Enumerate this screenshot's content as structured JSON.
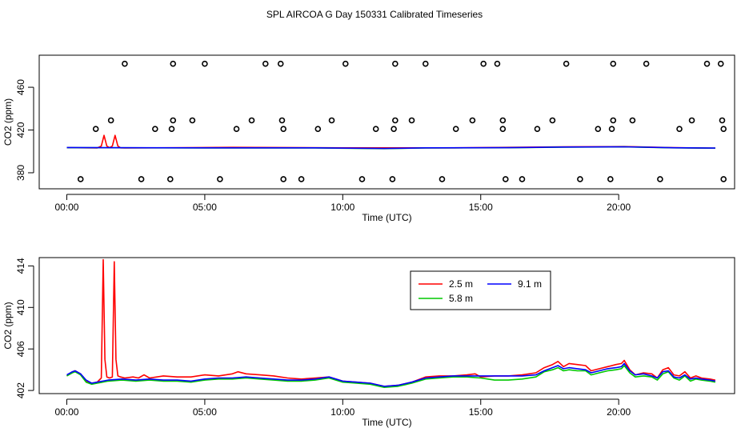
{
  "title": "SPL AIRCOA G  Day 150331  Calibrated Timeseries",
  "colors": {
    "red": "#ff0000",
    "green": "#00c800",
    "blue": "#0000ff",
    "black": "#000000"
  },
  "chart_data": [
    {
      "type": "scatter",
      "name": "top-panel",
      "xlabel": "Time (UTC)",
      "ylabel": "CO2 (ppm)",
      "xlim": [
        -1.0,
        24.2
      ],
      "ylim": [
        365,
        490
      ],
      "x_ticks": [
        0,
        5,
        10,
        15,
        20
      ],
      "x_tick_labels": [
        "00:00",
        "05:00",
        "10:00",
        "15:00",
        "20:00"
      ],
      "y_ticks": [
        380,
        420,
        460
      ],
      "y_tick_labels": [
        "380",
        "420",
        "460"
      ],
      "flag_markers": [
        {
          "y": 482,
          "x": [
            2.1,
            3.85,
            5.0,
            7.2,
            7.75,
            10.1,
            11.9,
            13.0,
            15.1,
            15.6,
            18.1,
            19.8,
            21.0,
            23.2,
            23.7
          ]
        },
        {
          "y": 429,
          "x": [
            1.6,
            3.85,
            4.55,
            6.7,
            7.8,
            9.6,
            11.9,
            12.5,
            14.7,
            15.8,
            17.6,
            19.8,
            20.5,
            22.65,
            23.75
          ]
        },
        {
          "y": 421,
          "x": [
            1.05,
            3.2,
            3.8,
            6.15,
            7.85,
            9.1,
            11.2,
            11.85,
            14.1,
            15.8,
            17.05,
            19.25,
            19.75,
            22.2,
            23.8
          ]
        },
        {
          "y": 374,
          "x": [
            0.5,
            2.7,
            3.75,
            5.55,
            7.85,
            8.5,
            10.7,
            11.8,
            13.6,
            15.9,
            16.5,
            18.6,
            19.7,
            21.5,
            23.8
          ]
        }
      ],
      "series": [
        {
          "name": "2.5 m",
          "color": "#ff0000",
          "x": [
            0,
            1.1,
            1.25,
            1.35,
            1.45,
            1.55,
            1.65,
            1.75,
            1.85,
            1.95,
            2.1,
            6.0,
            10.0,
            14.0,
            18.0,
            20.2,
            22.0,
            23.5
          ],
          "y": [
            403.5,
            403.2,
            405,
            415,
            405,
            403.5,
            405,
            415,
            405,
            403.3,
            403.2,
            403.8,
            403.3,
            403.3,
            404.3,
            404.5,
            403.5,
            403.0
          ]
        },
        {
          "name": "5.8 m",
          "color": "#00c800",
          "x": [
            0,
            3.0,
            6.0,
            9.0,
            11.5,
            13.0,
            16.0,
            18.0,
            20.2,
            22.0,
            23.5
          ],
          "y": [
            403.5,
            403.3,
            403.2,
            403.2,
            402.6,
            403.2,
            403.4,
            404.0,
            404.2,
            403.3,
            403.0
          ]
        },
        {
          "name": "9.1 m",
          "color": "#0000ff",
          "x": [
            0,
            3.0,
            6.0,
            9.0,
            11.5,
            13.0,
            16.0,
            18.0,
            20.2,
            22.0,
            23.5
          ],
          "y": [
            403.6,
            403.4,
            403.3,
            403.3,
            402.7,
            403.3,
            403.5,
            404.1,
            404.3,
            403.4,
            403.1
          ]
        }
      ]
    },
    {
      "type": "line",
      "name": "bottom-panel",
      "xlabel": "Time (UTC)",
      "ylabel": "CO2 (ppm)",
      "xlim": [
        -1.0,
        24.2
      ],
      "ylim": [
        401.7,
        414.8
      ],
      "x_ticks": [
        0,
        5,
        10,
        15,
        20
      ],
      "x_tick_labels": [
        "00:00",
        "05:00",
        "10:00",
        "15:00",
        "20:00"
      ],
      "y_ticks": [
        402,
        406,
        410,
        414
      ],
      "y_tick_labels": [
        "402",
        "406",
        "410",
        "414"
      ],
      "legend": {
        "position": "top-center",
        "entries": [
          "2.5 m",
          "5.8 m",
          "9.1 m"
        ]
      },
      "series": [
        {
          "name": "2.5 m",
          "color": "#ff0000",
          "x": [
            0,
            0.2,
            0.3,
            0.5,
            0.7,
            0.9,
            1.1,
            1.25,
            1.32,
            1.38,
            1.45,
            1.55,
            1.65,
            1.72,
            1.78,
            1.85,
            1.95,
            2.1,
            2.4,
            2.6,
            2.8,
            3.0,
            3.5,
            4.0,
            4.5,
            5.0,
            5.5,
            6.0,
            6.2,
            6.5,
            7.0,
            7.5,
            8.0,
            8.5,
            9.0,
            9.5,
            10.0,
            10.5,
            11.0,
            11.5,
            12.0,
            12.5,
            13.0,
            13.5,
            14.0,
            14.5,
            14.8,
            15.0,
            15.5,
            16.0,
            16.5,
            17.0,
            17.3,
            17.6,
            17.8,
            18.0,
            18.2,
            18.5,
            18.8,
            19.0,
            19.3,
            19.6,
            19.9,
            20.1,
            20.2,
            20.4,
            20.6,
            20.9,
            21.2,
            21.4,
            21.6,
            21.8,
            22.0,
            22.2,
            22.4,
            22.6,
            22.8,
            23.0,
            23.3,
            23.5
          ],
          "y": [
            403.4,
            403.8,
            403.9,
            403.6,
            402.9,
            402.7,
            402.8,
            403.2,
            414.6,
            405.0,
            403.3,
            403.2,
            403.3,
            414.4,
            405.0,
            403.4,
            403.3,
            403.2,
            403.3,
            403.2,
            403.5,
            403.2,
            403.4,
            403.3,
            403.3,
            403.5,
            403.4,
            403.6,
            403.8,
            403.6,
            403.5,
            403.4,
            403.2,
            403.1,
            403.2,
            403.3,
            402.9,
            402.8,
            402.7,
            402.4,
            402.5,
            402.8,
            403.3,
            403.4,
            403.4,
            403.5,
            403.6,
            403.3,
            403.4,
            403.4,
            403.5,
            403.7,
            404.2,
            404.5,
            404.8,
            404.3,
            404.6,
            404.5,
            404.4,
            403.9,
            404.1,
            404.3,
            404.5,
            404.6,
            404.9,
            404.0,
            403.5,
            403.7,
            403.6,
            403.2,
            404.0,
            404.2,
            403.5,
            403.4,
            403.8,
            403.2,
            403.4,
            403.2,
            403.1,
            403.0
          ]
        },
        {
          "name": "5.8 m",
          "color": "#00c800",
          "x": [
            0,
            0.2,
            0.3,
            0.5,
            0.7,
            0.9,
            1.1,
            1.5,
            2.0,
            2.5,
            3.0,
            3.5,
            4.0,
            4.5,
            5.0,
            5.5,
            6.0,
            6.5,
            7.0,
            7.5,
            8.0,
            8.5,
            9.0,
            9.5,
            10.0,
            10.5,
            11.0,
            11.5,
            12.0,
            12.5,
            13.0,
            13.5,
            14.0,
            14.5,
            15.0,
            15.5,
            16.0,
            16.5,
            17.0,
            17.3,
            17.6,
            17.8,
            18.0,
            18.2,
            18.5,
            18.8,
            19.0,
            19.3,
            19.6,
            19.9,
            20.1,
            20.2,
            20.4,
            20.6,
            20.9,
            21.2,
            21.4,
            21.6,
            21.8,
            22.0,
            22.2,
            22.4,
            22.6,
            22.8,
            23.0,
            23.3,
            23.5
          ],
          "y": [
            403.4,
            403.7,
            403.8,
            403.5,
            402.8,
            402.6,
            402.7,
            402.9,
            403.0,
            402.9,
            403.0,
            402.9,
            402.9,
            402.8,
            403.0,
            403.1,
            403.1,
            403.2,
            403.1,
            403.0,
            402.9,
            402.9,
            403.0,
            403.2,
            402.8,
            402.7,
            402.6,
            402.3,
            402.4,
            402.7,
            403.1,
            403.2,
            403.3,
            403.3,
            403.2,
            403.0,
            403.0,
            403.1,
            403.3,
            403.8,
            404.0,
            404.2,
            403.9,
            404.0,
            403.9,
            403.9,
            403.5,
            403.7,
            403.9,
            404.0,
            404.1,
            404.4,
            403.7,
            403.3,
            403.4,
            403.3,
            403.0,
            403.6,
            403.8,
            403.2,
            403.0,
            403.4,
            402.9,
            403.1,
            403.0,
            402.9,
            402.8
          ]
        },
        {
          "name": "9.1 m",
          "color": "#0000ff",
          "x": [
            0,
            0.2,
            0.3,
            0.5,
            0.7,
            0.9,
            1.1,
            1.5,
            2.0,
            2.5,
            3.0,
            3.5,
            4.0,
            4.5,
            5.0,
            5.5,
            6.0,
            6.5,
            7.0,
            7.5,
            8.0,
            8.5,
            9.0,
            9.5,
            10.0,
            10.5,
            11.0,
            11.5,
            12.0,
            12.5,
            13.0,
            13.5,
            14.0,
            14.5,
            15.0,
            15.5,
            16.0,
            16.5,
            17.0,
            17.3,
            17.6,
            17.8,
            18.0,
            18.2,
            18.5,
            18.8,
            19.0,
            19.3,
            19.6,
            19.9,
            20.1,
            20.2,
            20.4,
            20.6,
            20.9,
            21.2,
            21.4,
            21.6,
            21.8,
            22.0,
            22.2,
            22.4,
            22.6,
            22.8,
            23.0,
            23.3,
            23.5
          ],
          "y": [
            403.5,
            403.8,
            403.9,
            403.6,
            403.0,
            402.7,
            402.8,
            403.0,
            403.1,
            403.0,
            403.1,
            403.0,
            403.0,
            402.9,
            403.1,
            403.2,
            403.2,
            403.3,
            403.2,
            403.1,
            403.0,
            403.0,
            403.1,
            403.3,
            402.9,
            402.8,
            402.7,
            402.4,
            402.5,
            402.8,
            403.2,
            403.3,
            403.4,
            403.4,
            403.4,
            403.4,
            403.4,
            403.4,
            403.5,
            403.9,
            404.2,
            404.4,
            404.1,
            404.2,
            404.1,
            404.0,
            403.7,
            403.9,
            404.1,
            404.2,
            404.3,
            404.6,
            403.9,
            403.5,
            403.6,
            403.4,
            403.2,
            403.8,
            403.9,
            403.3,
            403.2,
            403.5,
            403.1,
            403.2,
            403.1,
            403.0,
            402.9
          ]
        }
      ]
    }
  ]
}
